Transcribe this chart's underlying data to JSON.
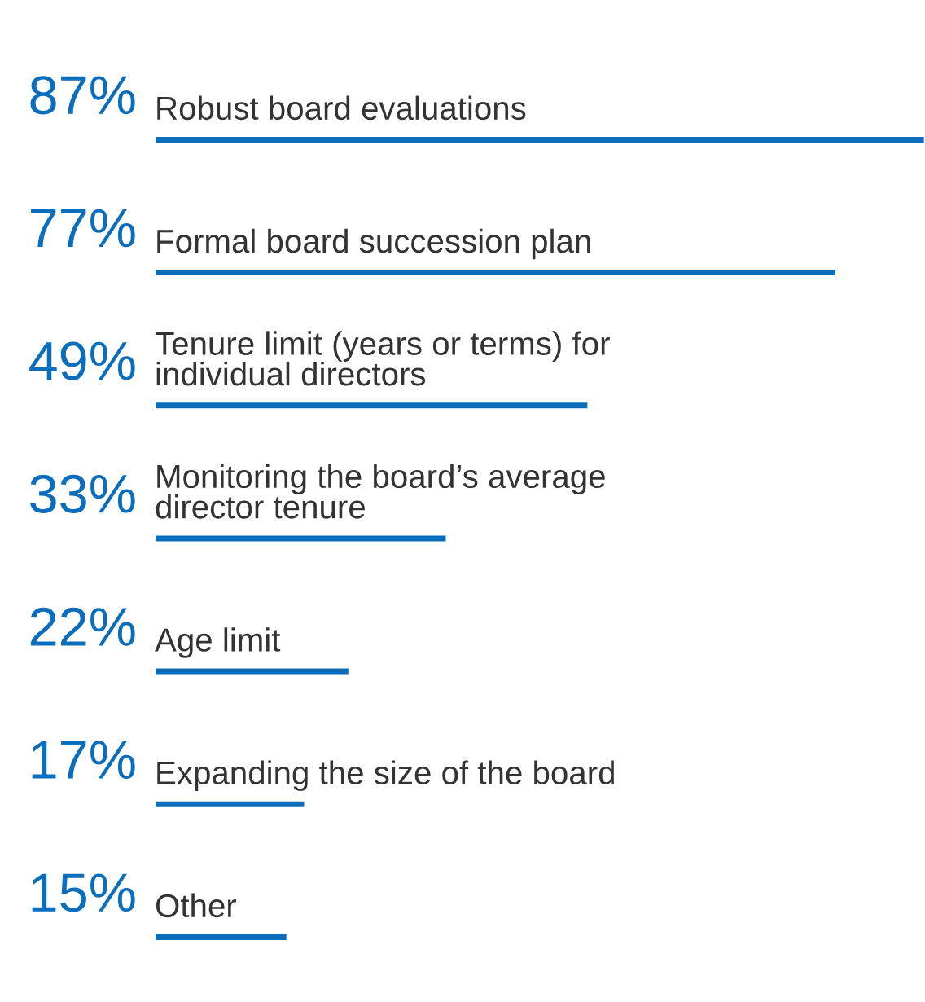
{
  "chart_data": {
    "type": "bar",
    "orientation": "horizontal",
    "categories": [
      "Robust board evaluations",
      "Formal board succession plan",
      "Tenure limit (years or terms) for\nindividual directors",
      "Monitoring the board’s average\ndirector tenure",
      "Age limit",
      "Expanding the size of the board",
      "Other"
    ],
    "values": [
      87,
      77,
      49,
      33,
      22,
      17,
      15
    ],
    "value_labels": [
      "87%",
      "77%",
      "49%",
      "33%",
      "22%",
      "17%",
      "15%"
    ],
    "color": "#0a6ebd"
  }
}
